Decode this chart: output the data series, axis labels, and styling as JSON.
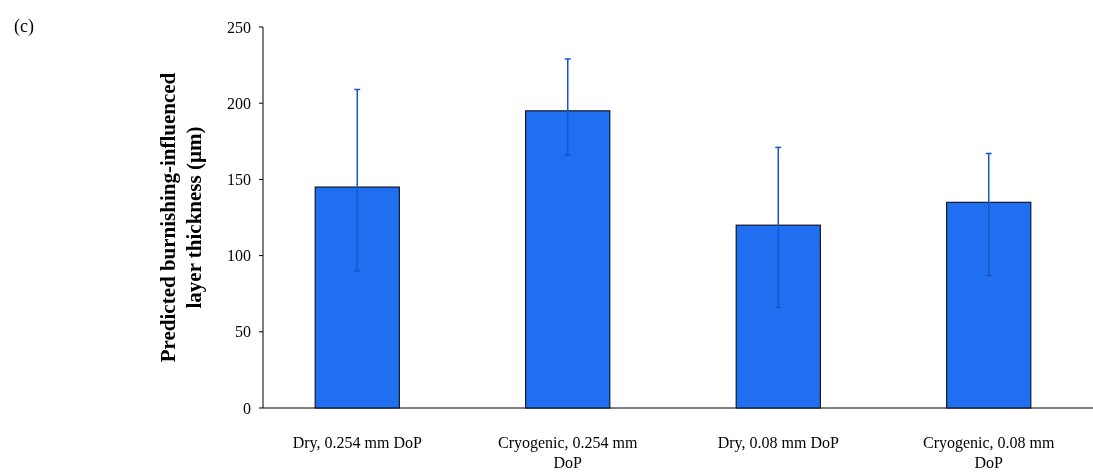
{
  "chart_data": {
    "type": "bar",
    "ylabel": "Predicted burnishing-influenced layer thickness (µm)",
    "categories": [
      "Dry, 0.254 mm DoP",
      "Cryogenic, 0.254 mm DoP",
      "Dry, 0.08 mm DoP",
      "Cryogenic, 0.08 mm DoP"
    ],
    "values": [
      145,
      195,
      120,
      135
    ],
    "errors": [
      [
        90,
        209
      ],
      [
        166,
        229
      ],
      [
        66,
        171
      ],
      [
        87,
        167
      ]
    ],
    "color": "#1f6ff0",
    "ylim": [
      0,
      250
    ],
    "yticks": [
      0,
      50,
      100,
      150,
      200,
      250
    ],
    "annotations": [
      "(c)"
    ]
  }
}
